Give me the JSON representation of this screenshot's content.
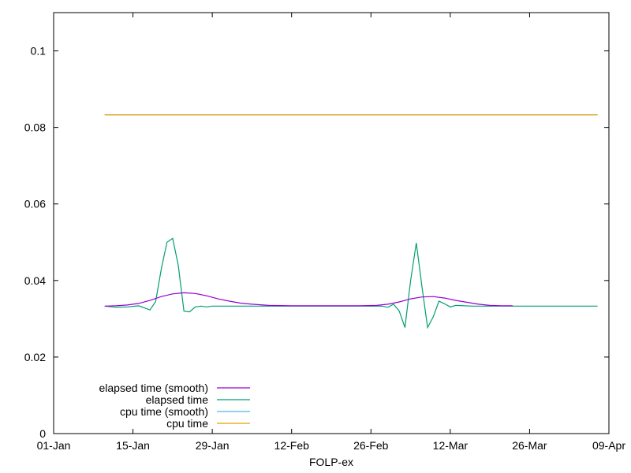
{
  "chart_data": {
    "type": "line",
    "title": "",
    "xlabel": "FOLP-ex",
    "ylabel": "",
    "x_ticks": [
      "01-Jan",
      "15-Jan",
      "29-Jan",
      "12-Feb",
      "26-Feb",
      "12-Mar",
      "26-Mar",
      "09-Apr"
    ],
    "y_ticks": [
      "0",
      "0.02",
      "0.04",
      "0.06",
      "0.08",
      "0.1"
    ],
    "xlim": [
      "01-Jan",
      "09-Apr"
    ],
    "ylim": [
      0,
      0.11
    ],
    "grid": false,
    "legend_position": "bottom-left",
    "series": [
      {
        "name": "elapsed time (smooth)",
        "color": "#9400d3",
        "x": [
          "10-Jan",
          "12-Jan",
          "14-Jan",
          "16-Jan",
          "18-Jan",
          "20-Jan",
          "22-Jan",
          "24-Jan",
          "26-Jan",
          "28-Jan",
          "30-Jan",
          "01-Feb",
          "03-Feb",
          "05-Feb",
          "08-Feb",
          "12-Feb",
          "16-Feb",
          "20-Feb",
          "24-Feb",
          "27-Feb",
          "01-Mar",
          "03-Mar",
          "05-Mar",
          "07-Mar",
          "09-Mar",
          "11-Mar",
          "13-Mar",
          "15-Mar",
          "17-Mar",
          "19-Mar",
          "21-Mar",
          "23-Mar"
        ],
        "y": [
          0.0333,
          0.0334,
          0.0336,
          0.034,
          0.0348,
          0.0358,
          0.0365,
          0.0368,
          0.0366,
          0.036,
          0.0352,
          0.0346,
          0.0341,
          0.0338,
          0.0335,
          0.0334,
          0.0334,
          0.0334,
          0.0334,
          0.0335,
          0.0338,
          0.0344,
          0.0352,
          0.0357,
          0.0358,
          0.0354,
          0.0348,
          0.0343,
          0.0338,
          0.0335,
          0.0334,
          0.0334
        ]
      },
      {
        "name": "elapsed time",
        "color": "#009e73",
        "x": [
          "10-Jan",
          "12-Jan",
          "14-Jan",
          "16-Jan",
          "18-Jan",
          "19-Jan",
          "20-Jan",
          "21-Jan",
          "22-Jan",
          "23-Jan",
          "24-Jan",
          "25-Jan",
          "26-Jan",
          "27-Jan",
          "28-Jan",
          "29-Jan",
          "31-Jan",
          "03-Feb",
          "08-Feb",
          "15-Feb",
          "22-Feb",
          "28-Feb",
          "01-Mar",
          "02-Mar",
          "03-Mar",
          "04-Mar",
          "05-Mar",
          "06-Mar",
          "07-Mar",
          "08-Mar",
          "09-Mar",
          "10-Mar",
          "11-Mar",
          "12-Mar",
          "13-Mar",
          "16-Mar",
          "22-Mar",
          "01-Apr",
          "07-Apr"
        ],
        "y": [
          0.0333,
          0.033,
          0.0331,
          0.0334,
          0.0323,
          0.0345,
          0.043,
          0.05,
          0.051,
          0.044,
          0.032,
          0.0318,
          0.0331,
          0.0333,
          0.0331,
          0.0333,
          0.0333,
          0.0333,
          0.0333,
          0.0333,
          0.0333,
          0.0333,
          0.033,
          0.0338,
          0.032,
          0.0277,
          0.04,
          0.0498,
          0.0385,
          0.0277,
          0.0305,
          0.0346,
          0.0339,
          0.0331,
          0.0335,
          0.0333,
          0.0333,
          0.0333,
          0.0333
        ]
      },
      {
        "name": "cpu time (smooth)",
        "color": "#56b4e9",
        "x": [
          "10-Jan",
          "07-Apr"
        ],
        "y": [
          0.0833,
          0.0833
        ]
      },
      {
        "name": "cpu time",
        "color": "#e69f00",
        "x": [
          "10-Jan",
          "07-Apr"
        ],
        "y": [
          0.0833,
          0.0833
        ]
      }
    ]
  }
}
